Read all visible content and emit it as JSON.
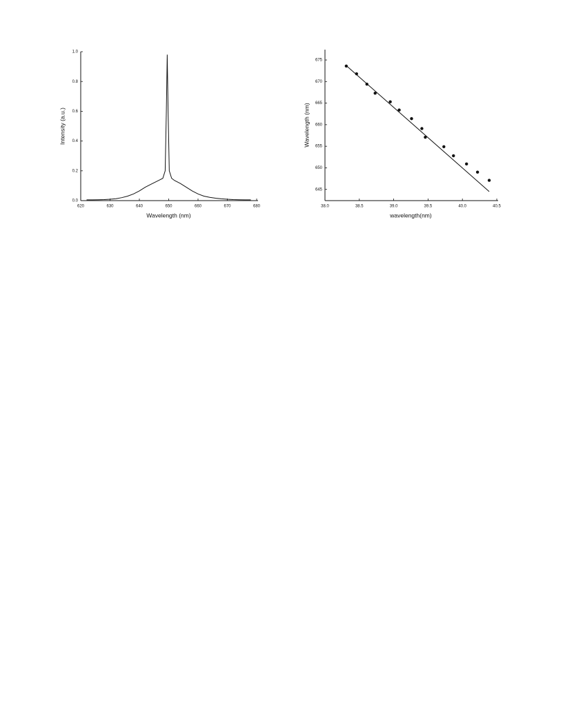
{
  "chart_data": [
    {
      "type": "line",
      "xlabel": "Wavelength (nm)",
      "ylabel": "Intensity (a.u.)",
      "x": [
        622,
        624,
        626,
        628,
        630,
        632,
        634,
        636,
        638,
        640,
        642,
        644,
        646,
        647,
        648,
        648.8,
        649.2,
        649.5,
        649.8,
        650.2,
        651,
        652,
        654,
        656,
        658,
        660,
        662,
        664,
        666,
        668,
        670,
        672,
        674,
        676,
        678
      ],
      "values": [
        0.005,
        0.005,
        0.006,
        0.007,
        0.009,
        0.013,
        0.02,
        0.03,
        0.045,
        0.065,
        0.09,
        0.11,
        0.13,
        0.14,
        0.15,
        0.2,
        0.6,
        0.98,
        0.6,
        0.2,
        0.15,
        0.135,
        0.115,
        0.09,
        0.065,
        0.045,
        0.03,
        0.022,
        0.016,
        0.012,
        0.009,
        0.007,
        0.006,
        0.005,
        0.005
      ],
      "color": "#111111",
      "xlim": [
        620,
        680
      ],
      "xticks": [
        620,
        630,
        640,
        650,
        660,
        670,
        680
      ],
      "ylim": [
        0,
        1
      ],
      "yticks": [
        {
          "value": 0,
          "label": "0.0"
        },
        0.2,
        0.4,
        0.6,
        0.8,
        {
          "value": 1,
          "label": "1.0"
        }
      ]
    },
    {
      "type": "scatter",
      "xlabel": "wavelength(nm)",
      "ylabel": "Wavelength (nm)",
      "x": [
        38.31,
        38.46,
        38.61,
        38.73,
        38.95,
        39.08,
        39.26,
        39.41,
        39.46,
        39.73,
        39.87,
        40.06,
        40.22,
        40.39
      ],
      "values": [
        673.6,
        671.8,
        669.4,
        667.3,
        665.3,
        663.4,
        661.4,
        659.1,
        657.1,
        654.9,
        652.8,
        650.9,
        649.0,
        647.1
      ],
      "color": "#111111",
      "fit_line": {
        "x": [
          38.31,
          40.39
        ],
        "values": [
          673.7,
          644.5
        ]
      },
      "xlim": [
        38.0,
        40.5
      ],
      "xticks": [
        {
          "value": 38,
          "label": "38.0"
        },
        38.5,
        {
          "value": 39,
          "label": "39.0"
        },
        39.5,
        {
          "value": 40,
          "label": "40.0"
        },
        40.5
      ],
      "ylim": [
        642.4,
        677.4
      ],
      "yticks": [
        645,
        650,
        655,
        660,
        665,
        670,
        675
      ]
    }
  ]
}
